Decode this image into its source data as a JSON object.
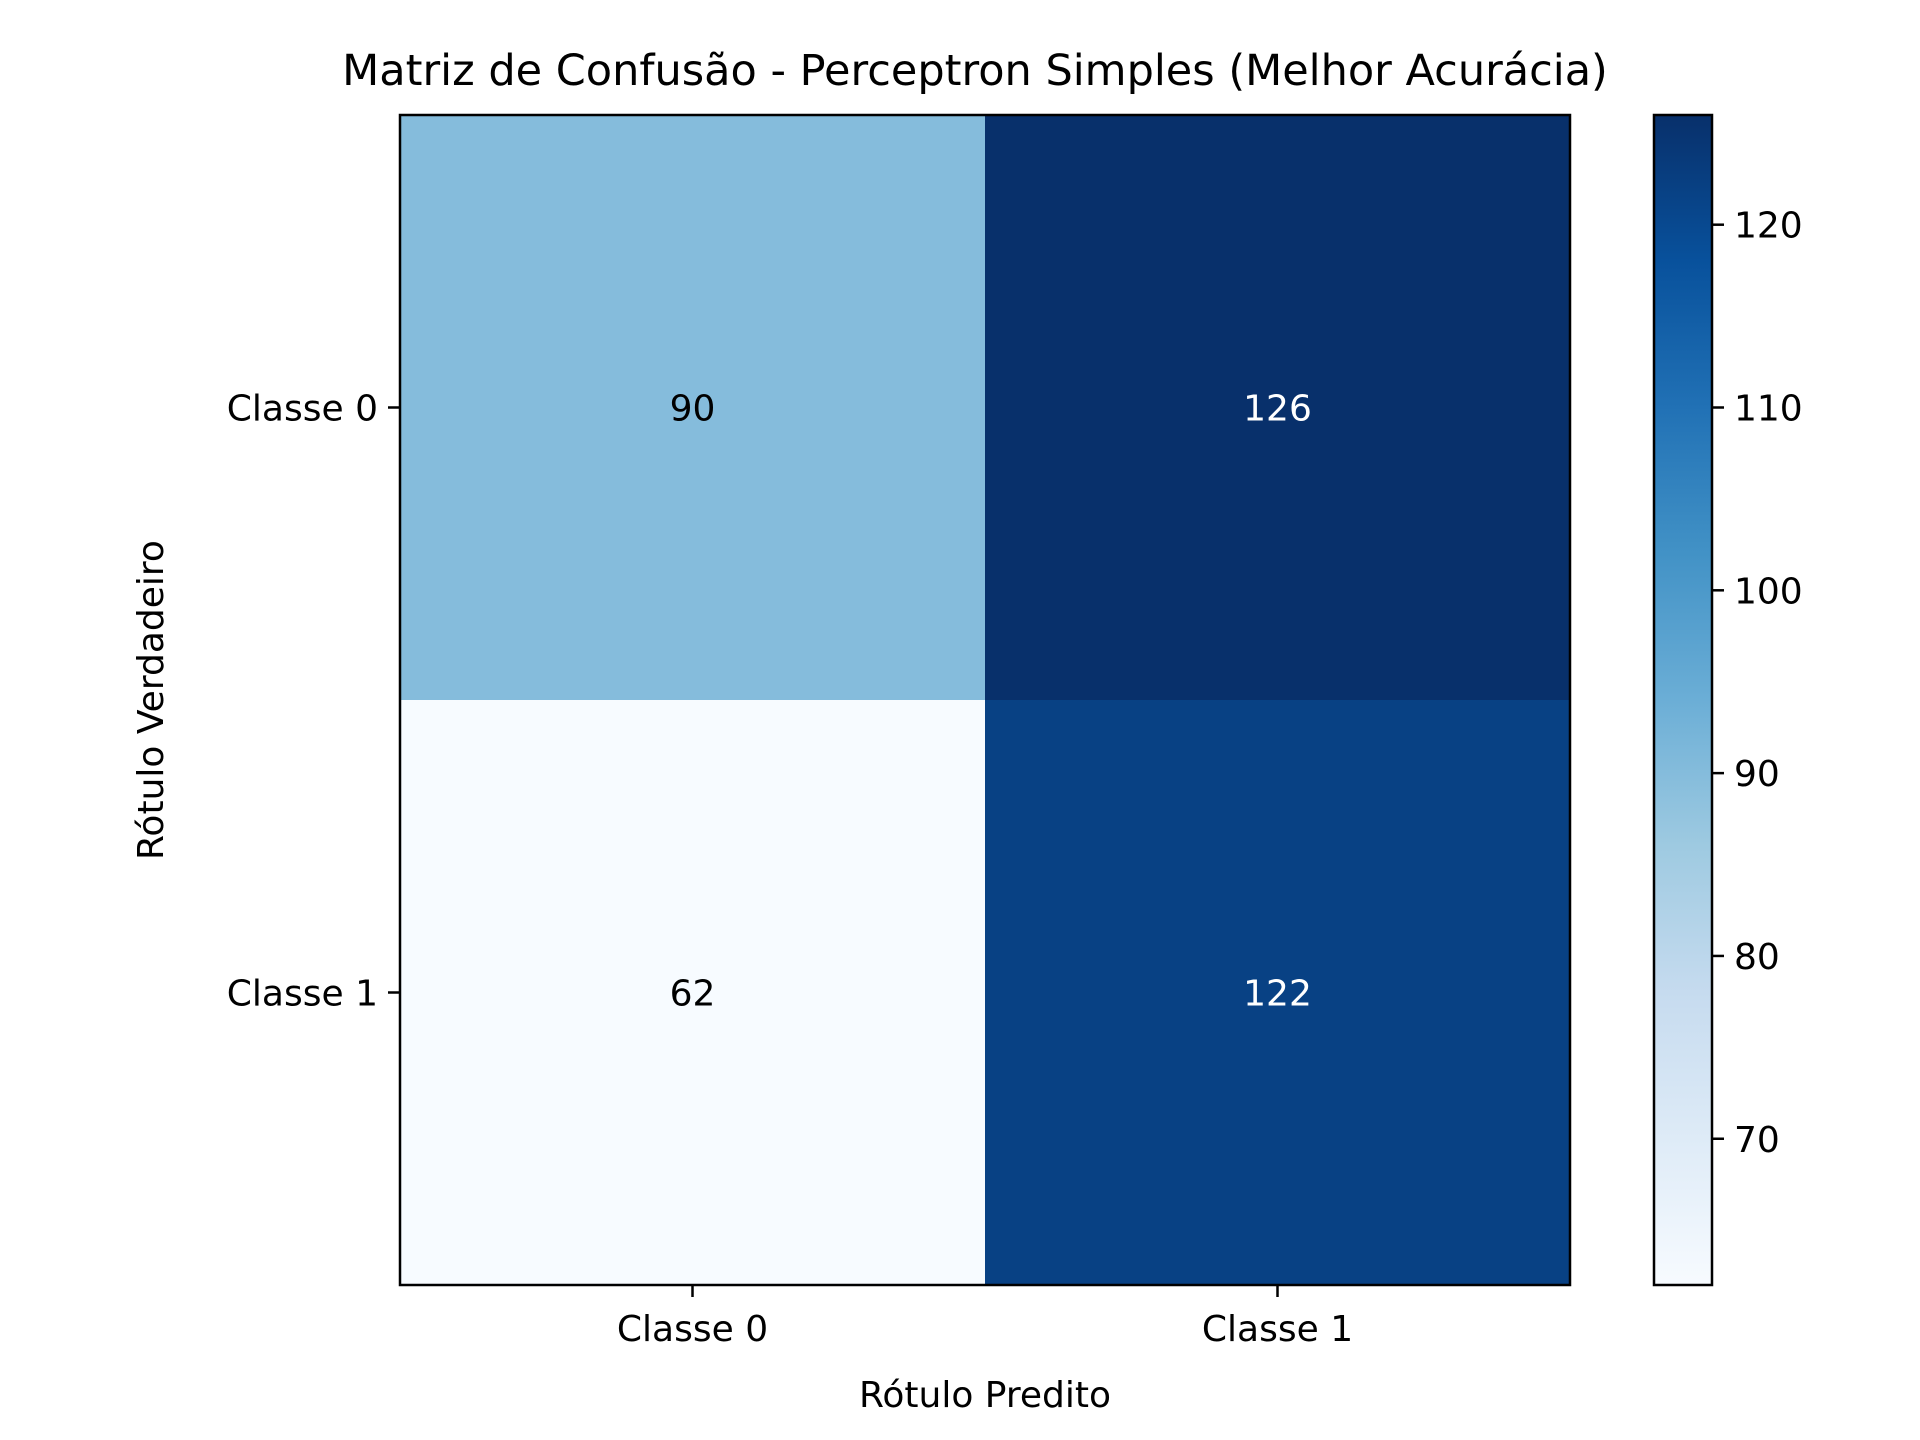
{
  "chart_data": {
    "type": "heatmap",
    "title": "Matriz de Confusão - Perceptron Simples (Melhor Acurácia)",
    "xlabel": "Rótulo Predito",
    "ylabel": "Rótulo Verdadeiro",
    "x_categories": [
      "Classe 0",
      "Classe 1"
    ],
    "y_categories": [
      "Classe 0",
      "Classe 1"
    ],
    "values": [
      [
        90,
        126
      ],
      [
        62,
        122
      ]
    ],
    "colorscale": "Blues",
    "color_range": [
      62,
      126
    ],
    "colorbar_ticks": [
      70,
      80,
      90,
      100,
      110,
      120
    ],
    "colorbar_tick_labels": [
      "70",
      "80",
      "90",
      "100",
      "110",
      "120"
    ],
    "text_threshold": 94,
    "text_colors": {
      "light": "#ffffff",
      "dark": "#000000"
    }
  }
}
